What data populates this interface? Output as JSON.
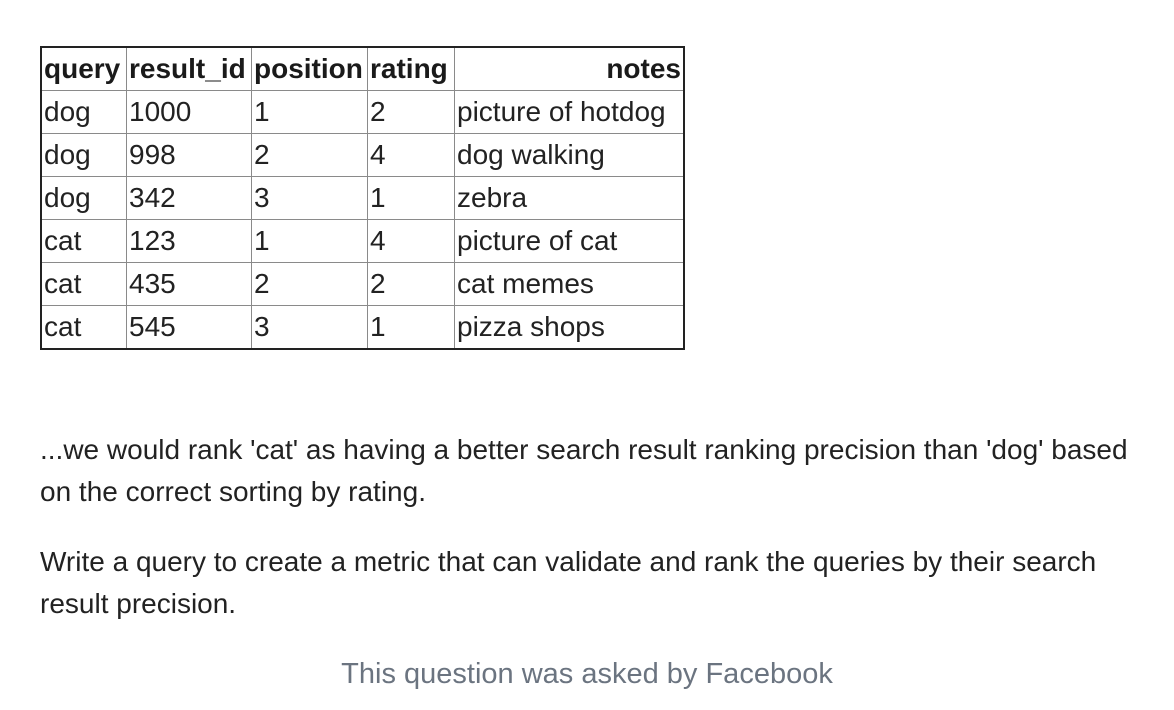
{
  "table": {
    "headers": [
      "query",
      "result_id",
      "position",
      "rating",
      "notes"
    ],
    "rows": [
      [
        "dog",
        "1000",
        "1",
        "2",
        "picture of hotdog"
      ],
      [
        "dog",
        "998",
        "2",
        "4",
        "dog walking"
      ],
      [
        "dog",
        "342",
        "3",
        "1",
        "zebra"
      ],
      [
        "cat",
        "123",
        "1",
        "4",
        "picture of cat"
      ],
      [
        "cat",
        "435",
        "2",
        "2",
        "cat memes"
      ],
      [
        "cat",
        "545",
        "3",
        "1",
        "pizza shops"
      ]
    ]
  },
  "paragraphs": [
    "...we would rank 'cat' as having a better search result ranking precision than 'dog' based on the correct sorting by rating.",
    "Write a query to create a metric that can validate and rank the queries by their search result precision."
  ],
  "footer": {
    "text": "This question was asked by Facebook"
  }
}
